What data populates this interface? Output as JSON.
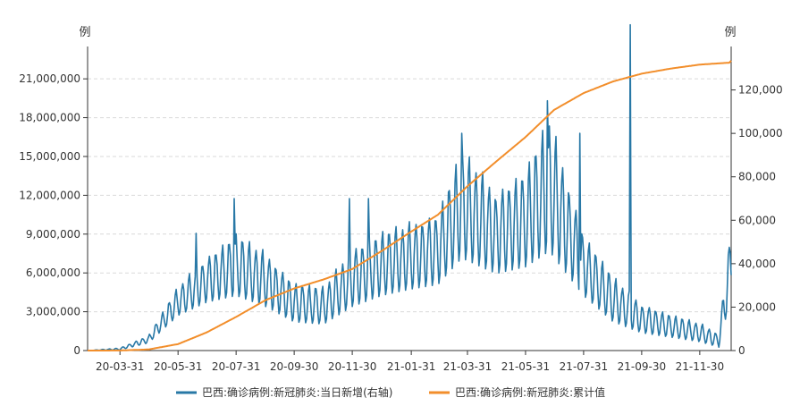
{
  "chart_data": {
    "type": "line",
    "left_axis": {
      "unit": "例",
      "ylim": [
        0,
        23500000
      ],
      "ticks": [
        0,
        3000000,
        6000000,
        9000000,
        12000000,
        15000000,
        18000000,
        21000000
      ],
      "tick_labels": [
        "0",
        "3,000,000",
        "6,000,000",
        "9,000,000",
        "12,000,000",
        "15,000,000",
        "18,000,000",
        "21,000,000"
      ]
    },
    "right_axis": {
      "unit": "例",
      "ylim": [
        0,
        140000
      ],
      "ticks": [
        0,
        20000,
        40000,
        60000,
        80000,
        100000,
        120000
      ],
      "tick_labels": [
        "0",
        "20,000",
        "40,000",
        "60,000",
        "80,000",
        "100,000",
        "120,000"
      ]
    },
    "x_axis": {
      "start": "2020-02-26",
      "end": "2022-01-02",
      "tick_dates": [
        "2020-03-31",
        "2020-05-31",
        "2020-07-31",
        "2020-09-30",
        "2020-11-30",
        "2021-01-31",
        "2021-03-31",
        "2021-05-31",
        "2021-07-31",
        "2021-09-30",
        "2021-11-30"
      ],
      "tick_labels": [
        "20-03-31",
        "20-05-31",
        "20-07-31",
        "20-09-30",
        "20-11-30",
        "21-01-31",
        "21-03-31",
        "21-05-31",
        "21-07-31",
        "21-09-30",
        "21-11-30"
      ]
    },
    "grid": true,
    "legend_position": "bottom",
    "series": [
      {
        "name": "巴西:确诊病例:新冠肺炎:当日新增(右轴)",
        "axis": "right",
        "color": "#2878A6",
        "approx_weekly_shape": true,
        "high_points": [
          [
            "2020-02-26",
            0
          ],
          [
            "2020-03-31",
            1200
          ],
          [
            "2020-04-30",
            7000
          ],
          [
            "2020-05-31",
            30000
          ],
          [
            "2020-06-30",
            44000
          ],
          [
            "2020-07-31",
            55000
          ],
          [
            "2020-08-31",
            46000
          ],
          [
            "2020-09-30",
            32000
          ],
          [
            "2020-10-31",
            30000
          ],
          [
            "2020-11-30",
            48000
          ],
          [
            "2020-12-31",
            56000
          ],
          [
            "2021-01-31",
            60000
          ],
          [
            "2021-02-28",
            65000
          ],
          [
            "2021-03-25",
            95000
          ],
          [
            "2021-04-30",
            75000
          ],
          [
            "2021-05-31",
            85000
          ],
          [
            "2021-06-25",
            110000
          ],
          [
            "2021-07-31",
            55000
          ],
          [
            "2021-08-31",
            35000
          ],
          [
            "2021-09-30",
            22000
          ],
          [
            "2021-10-31",
            17000
          ],
          [
            "2021-11-30",
            13000
          ],
          [
            "2021-12-20",
            8000
          ],
          [
            "2022-01-02",
            60000
          ]
        ],
        "low_points": [
          [
            "2020-02-26",
            0
          ],
          [
            "2020-03-31",
            300
          ],
          [
            "2020-04-30",
            3500
          ],
          [
            "2020-05-31",
            16000
          ],
          [
            "2020-06-30",
            22000
          ],
          [
            "2020-07-31",
            25000
          ],
          [
            "2020-08-31",
            20000
          ],
          [
            "2020-09-30",
            13000
          ],
          [
            "2020-10-31",
            12000
          ],
          [
            "2020-11-30",
            20000
          ],
          [
            "2020-12-31",
            25000
          ],
          [
            "2021-01-31",
            28000
          ],
          [
            "2021-02-28",
            30000
          ],
          [
            "2021-03-25",
            42000
          ],
          [
            "2021-04-30",
            35000
          ],
          [
            "2021-05-31",
            38000
          ],
          [
            "2021-06-25",
            45000
          ],
          [
            "2021-07-31",
            25000
          ],
          [
            "2021-08-31",
            13000
          ],
          [
            "2021-09-30",
            8000
          ],
          [
            "2021-10-31",
            6000
          ],
          [
            "2021-11-30",
            4000
          ],
          [
            "2021-12-20",
            1500
          ],
          [
            "2022-01-02",
            25000
          ]
        ],
        "spikes": [
          [
            "2020-06-19",
            54000
          ],
          [
            "2020-07-29",
            70000
          ],
          [
            "2020-11-27",
            70000
          ],
          [
            "2020-12-17",
            70000
          ],
          [
            "2021-03-25",
            100000
          ],
          [
            "2021-06-23",
            115000
          ],
          [
            "2021-07-27",
            100000
          ],
          [
            "2021-09-18",
            150000
          ]
        ]
      },
      {
        "name": "巴西:确诊病例:新冠肺炎:累计值",
        "axis": "left",
        "color": "#F28E2B",
        "points": [
          [
            "2020-02-26",
            0
          ],
          [
            "2020-03-31",
            5000
          ],
          [
            "2020-04-30",
            85000
          ],
          [
            "2020-05-31",
            500000
          ],
          [
            "2020-06-30",
            1400000
          ],
          [
            "2020-07-31",
            2600000
          ],
          [
            "2020-08-31",
            3900000
          ],
          [
            "2020-09-30",
            4800000
          ],
          [
            "2020-10-31",
            5500000
          ],
          [
            "2020-11-30",
            6300000
          ],
          [
            "2020-12-31",
            7700000
          ],
          [
            "2021-01-31",
            9200000
          ],
          [
            "2021-02-28",
            10500000
          ],
          [
            "2021-03-31",
            12700000
          ],
          [
            "2021-04-30",
            14600000
          ],
          [
            "2021-05-31",
            16500000
          ],
          [
            "2021-06-30",
            18600000
          ],
          [
            "2021-07-31",
            19900000
          ],
          [
            "2021-08-31",
            20800000
          ],
          [
            "2021-09-30",
            21400000
          ],
          [
            "2021-10-31",
            21800000
          ],
          [
            "2021-11-30",
            22100000
          ],
          [
            "2021-12-31",
            22250000
          ],
          [
            "2022-01-02",
            22400000
          ]
        ]
      }
    ]
  }
}
